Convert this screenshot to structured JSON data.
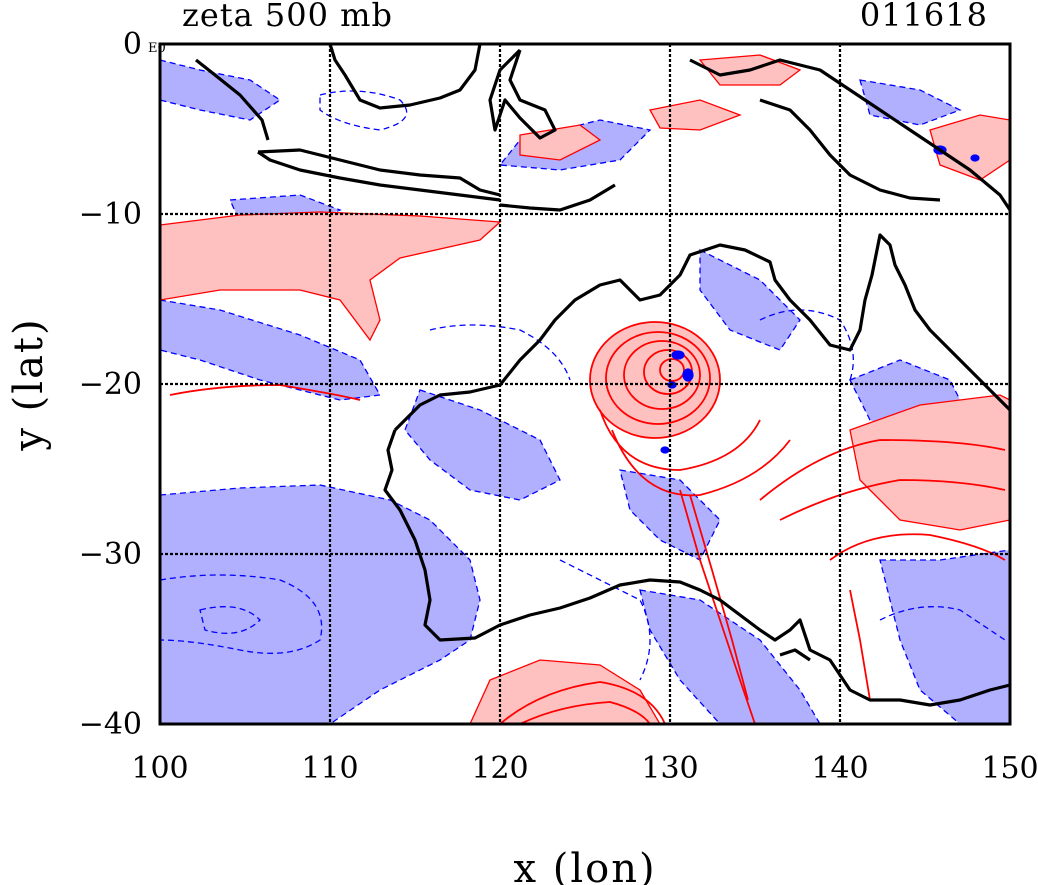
{
  "header": {
    "field_title": "zeta 500 mb",
    "timestamp": "011618"
  },
  "chart_data": {
    "type": "contour-map",
    "field": "zeta 500 mb",
    "time_label": "011618",
    "xlabel": "x (lon)",
    "ylabel": "y (lat)",
    "xlim": [
      100,
      150
    ],
    "ylim": [
      -40,
      0
    ],
    "x_ticks": [
      {
        "value": 100,
        "label": "100"
      },
      {
        "value": 110,
        "label": "110"
      },
      {
        "value": 120,
        "label": "120"
      },
      {
        "value": 130,
        "label": "130"
      },
      {
        "value": 140,
        "label": "140"
      },
      {
        "value": 150,
        "label": "150"
      }
    ],
    "y_ticks": [
      {
        "value": 0,
        "label": "0"
      },
      {
        "value": -10,
        "label": "−10"
      },
      {
        "value": -20,
        "label": "−20"
      },
      {
        "value": -30,
        "label": "−30"
      },
      {
        "value": -40,
        "label": "−40"
      }
    ],
    "corner_marker": "E0",
    "grid": true,
    "grid_lon": [
      110,
      120,
      130,
      140
    ],
    "grid_lat": [
      -10,
      -20,
      -30
    ],
    "colors": {
      "positive_line": "#ff0000",
      "positive_fill": "#ffc0c0",
      "negative_line": "#0000ff",
      "negative_fill": "#b0b0ff",
      "coastline": "#000000",
      "grid": "#000000"
    }
  }
}
